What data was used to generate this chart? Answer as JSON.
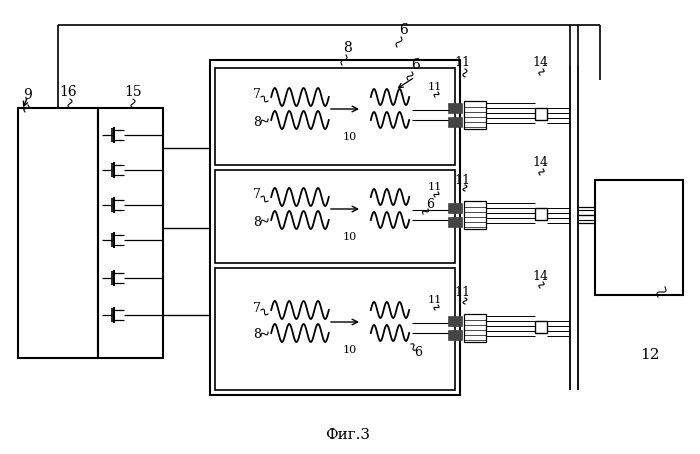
{
  "title": "Фиг.3",
  "bg_color": "#ffffff",
  "line_color": "#000000",
  "fig_width": 7.0,
  "fig_height": 4.54,
  "dpi": 100
}
